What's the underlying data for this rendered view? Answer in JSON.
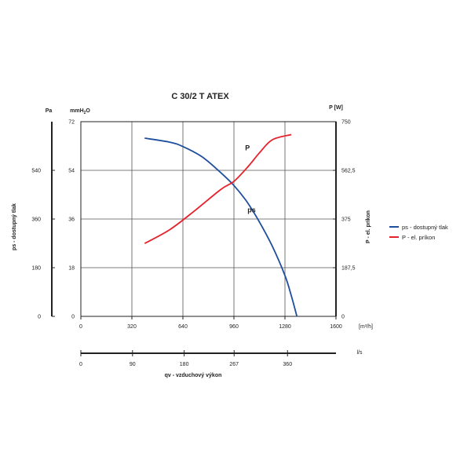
{
  "chart_data": {
    "type": "line",
    "title": "C 30/2 T ATEX",
    "x": {
      "unit": "[m³/h]",
      "ticks": [
        "0",
        "320",
        "640",
        "960",
        "1280",
        "1600"
      ],
      "range": [
        0,
        1600
      ]
    },
    "x2": {
      "unit": "l/s",
      "label": "qv - vzduchový výkon",
      "ticks": [
        {
          "label": "0",
          "value": 0
        },
        {
          "label": "90",
          "value": 90
        },
        {
          "label": "180",
          "value": 180
        },
        {
          "label": "267",
          "value": 267
        },
        {
          "label": "360",
          "value": 360
        }
      ],
      "range": [
        0,
        444.44
      ]
    },
    "y_left_pa": {
      "unit": "Pa",
      "label": "ps - dostupný tlak",
      "ticks": [
        {
          "label": "0",
          "value": 0
        },
        {
          "label": "180",
          "value": 180
        },
        {
          "label": "360",
          "value": 360
        },
        {
          "label": "540",
          "value": 540
        }
      ],
      "range": [
        0,
        720
      ]
    },
    "y_left_mm": {
      "unit_main": "mmH",
      "unit_sub": "2",
      "unit_end": "O",
      "ticks": [
        "0",
        "18",
        "36",
        "54",
        "72"
      ],
      "range": [
        0,
        72
      ]
    },
    "y_right": {
      "unit": "P [W]",
      "label": "P - el. príkon",
      "ticks": [
        "0",
        "187,5",
        "375",
        "562,5",
        "750"
      ],
      "range": [
        0,
        750
      ]
    },
    "grid": true,
    "legend_position": "right",
    "series": [
      {
        "name": "ps - dostupný tlak",
        "curve_label": "ps",
        "axis": "y_left_mm",
        "color": "#1f4e9e",
        "points": [
          [
            400,
            65.9
          ],
          [
            560,
            64.4
          ],
          [
            640,
            62.8
          ],
          [
            760,
            59.0
          ],
          [
            880,
            53.0
          ],
          [
            960,
            48.4
          ],
          [
            1040,
            42.5
          ],
          [
            1120,
            34.9
          ],
          [
            1200,
            26.0
          ],
          [
            1280,
            15.1
          ],
          [
            1320,
            7.6
          ],
          [
            1355,
            0
          ]
        ]
      },
      {
        "name": "P - el. príkon",
        "curve_label": "P",
        "axis": "y_right",
        "color": "#e8202a",
        "points": [
          [
            400,
            281
          ],
          [
            560,
            335
          ],
          [
            720,
            410
          ],
          [
            880,
            490
          ],
          [
            960,
            520
          ],
          [
            1050,
            578
          ],
          [
            1120,
            630
          ],
          [
            1200,
            680
          ],
          [
            1320,
            700
          ]
        ]
      }
    ]
  }
}
